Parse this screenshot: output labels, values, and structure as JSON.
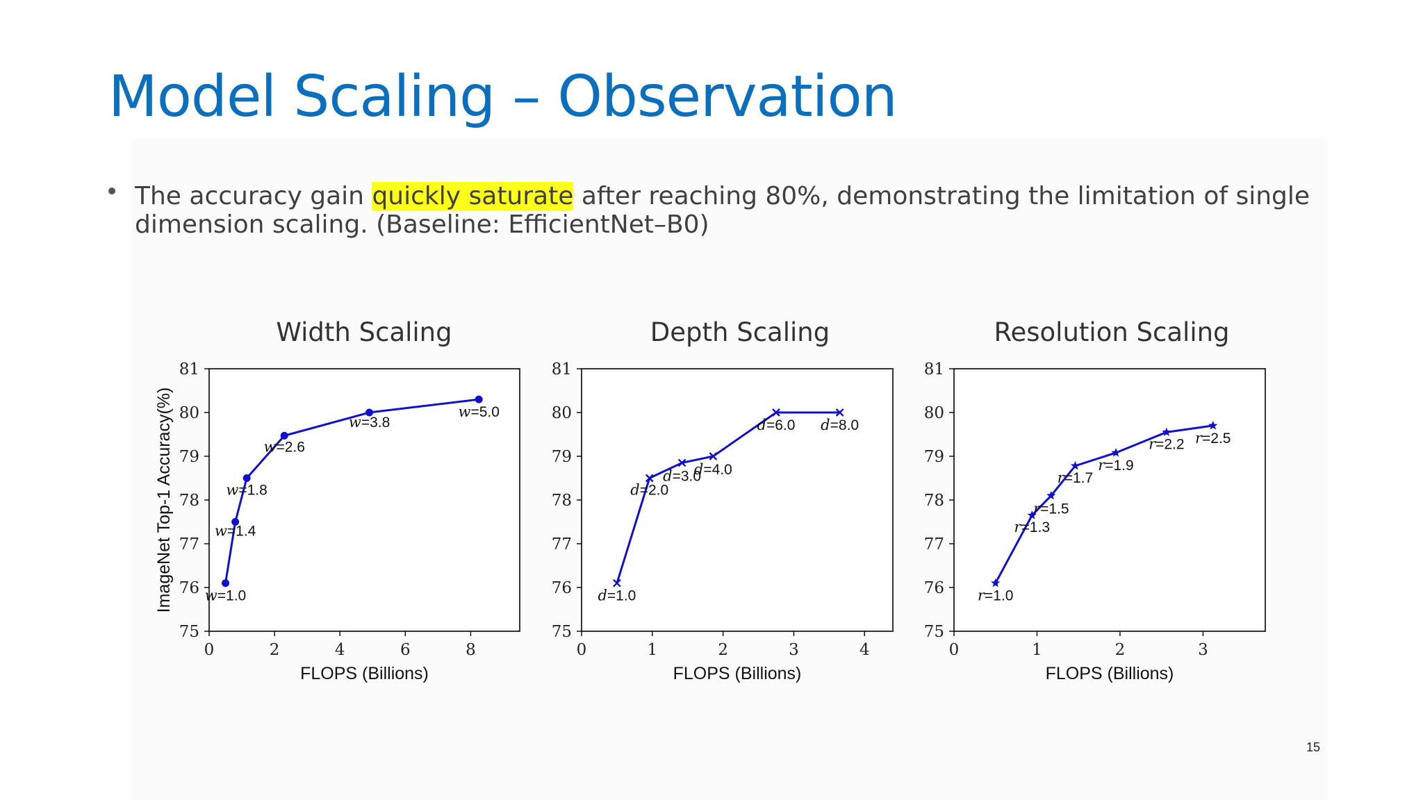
{
  "slide": {
    "title": "Model Scaling – Observation",
    "bullet_pre": "The accuracy gain ",
    "bullet_highlight": "quickly saturate",
    "bullet_post": " after reaching 80%, demonstrating the limitation of single dimension scaling. (Baseline: EfficientNet–B0)",
    "page_number": "15",
    "highlight_color": "#ffff1c",
    "title_color": "#0a6fbd"
  },
  "chart_data": [
    {
      "type": "line",
      "title": "Width Scaling",
      "xlabel": "FLOPS (Billions)",
      "ylabel": "ImageNet Top-1 Accuracy(%)",
      "xlim": [
        0,
        9.5
      ],
      "ylim": [
        75,
        81
      ],
      "xticks": [
        0,
        2,
        4,
        6,
        8
      ],
      "yticks": [
        75,
        76,
        77,
        78,
        79,
        80,
        81
      ],
      "marker": "circle",
      "color": "#1010cc",
      "points": [
        {
          "x": 0.5,
          "y": 76.1,
          "var": "w",
          "label": "=1.0"
        },
        {
          "x": 0.8,
          "y": 77.5,
          "var": "w",
          "label": "=1.4"
        },
        {
          "x": 1.15,
          "y": 78.5,
          "var": "w",
          "label": "=1.8"
        },
        {
          "x": 2.3,
          "y": 79.47,
          "var": "w",
          "label": "=2.6"
        },
        {
          "x": 4.9,
          "y": 80.0,
          "var": "w",
          "label": "=3.8"
        },
        {
          "x": 8.25,
          "y": 80.3,
          "var": "w",
          "label": "=5.0"
        }
      ]
    },
    {
      "type": "line",
      "title": "Depth Scaling",
      "xlabel": "FLOPS (Billions)",
      "ylabel": "",
      "xlim": [
        0,
        4.4
      ],
      "ylim": [
        75,
        81
      ],
      "xticks": [
        0,
        1,
        2,
        3,
        4
      ],
      "yticks": [
        75,
        76,
        77,
        78,
        79,
        80,
        81
      ],
      "marker": "x",
      "color": "#1010cc",
      "points": [
        {
          "x": 0.5,
          "y": 76.1,
          "var": "d",
          "label": "=1.0"
        },
        {
          "x": 0.96,
          "y": 78.5,
          "var": "d",
          "label": "=2.0"
        },
        {
          "x": 1.42,
          "y": 78.85,
          "var": "d",
          "label": "=3.0"
        },
        {
          "x": 1.86,
          "y": 79.0,
          "var": "d",
          "label": "=4.0"
        },
        {
          "x": 2.75,
          "y": 80.0,
          "var": "d",
          "label": "=6.0"
        },
        {
          "x": 3.65,
          "y": 80.0,
          "var": "d",
          "label": "=8.0"
        }
      ]
    },
    {
      "type": "line",
      "title": "Resolution Scaling",
      "xlabel": "FLOPS (Billions)",
      "ylabel": "",
      "xlim": [
        0,
        3.75
      ],
      "ylim": [
        75,
        81
      ],
      "xticks": [
        0,
        1,
        2,
        3
      ],
      "yticks": [
        75,
        76,
        77,
        78,
        79,
        80,
        81
      ],
      "marker": "star",
      "color": "#1010cc",
      "points": [
        {
          "x": 0.5,
          "y": 76.1,
          "var": "r",
          "label": "=1.0"
        },
        {
          "x": 0.94,
          "y": 77.65,
          "var": "r",
          "label": "=1.3"
        },
        {
          "x": 1.17,
          "y": 78.1,
          "var": "r",
          "label": "=1.5"
        },
        {
          "x": 1.46,
          "y": 78.78,
          "var": "r",
          "label": "=1.7"
        },
        {
          "x": 1.95,
          "y": 79.08,
          "var": "r",
          "label": "=1.9"
        },
        {
          "x": 2.56,
          "y": 79.55,
          "var": "r",
          "label": "=2.2"
        },
        {
          "x": 3.12,
          "y": 79.7,
          "var": "r",
          "label": "=2.5"
        }
      ]
    }
  ]
}
